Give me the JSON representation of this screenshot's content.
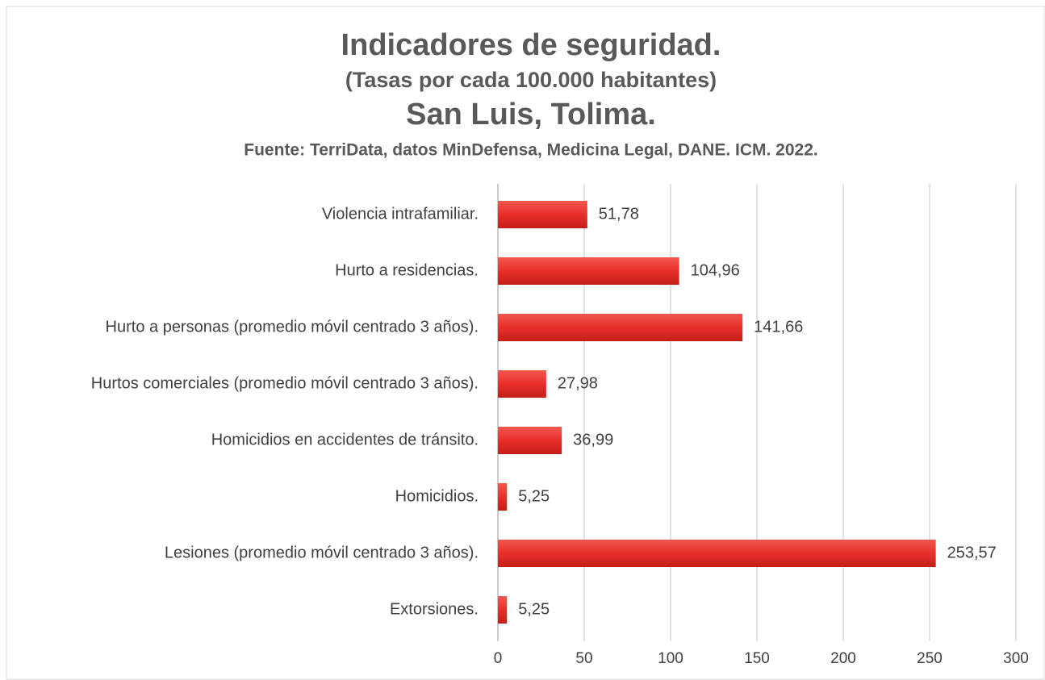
{
  "chart_data": {
    "type": "bar",
    "orientation": "horizontal",
    "title": "Indicadores de seguridad.",
    "subtitle": "(Tasas por cada 100.000 habitantes)",
    "location": "San Luis, Tolima.",
    "source": "Fuente: TerriData, datos MinDefensa, Medicina Legal, DANE. ICM. 2022.",
    "categories": [
      "Violencia intrafamiliar.",
      "Hurto a residencias.",
      "Hurto a personas (promedio móvil centrado 3 años).",
      "Hurtos comerciales (promedio móvil centrado 3 años).",
      "Homicidios en accidentes de tránsito.",
      "Homicidios.",
      "Lesiones (promedio móvil centrado 3 años).",
      "Extorsiones."
    ],
    "values": [
      51.78,
      104.96,
      141.66,
      27.98,
      36.99,
      5.25,
      253.57,
      5.25
    ],
    "value_labels": [
      "51,78",
      "104,96",
      "141,66",
      "27,98",
      "36,99",
      "5,25",
      "253,57",
      "5,25"
    ],
    "color": "#e8302a",
    "xlim": [
      0,
      300
    ],
    "xticks": [
      0,
      50,
      100,
      150,
      200,
      250,
      300
    ],
    "grid": true
  }
}
